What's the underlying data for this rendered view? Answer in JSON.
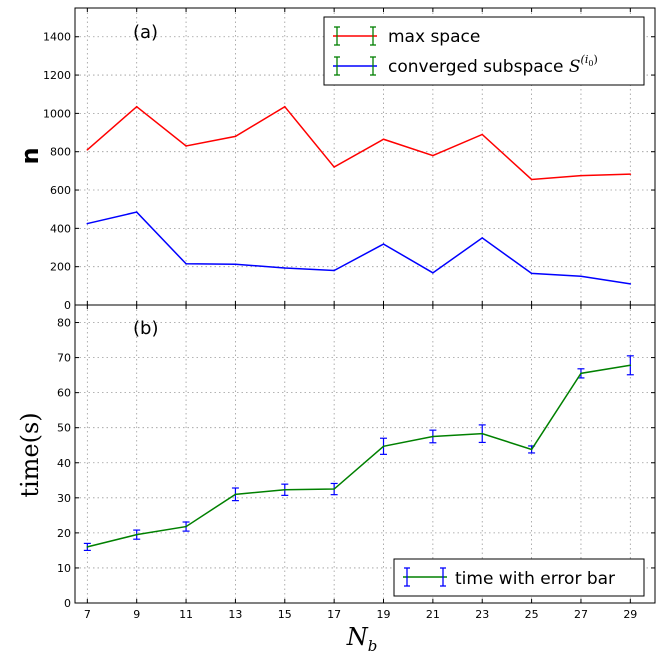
{
  "chart_data": [
    {
      "type": "line",
      "panel_label": "(a)",
      "ylabel": "n",
      "xlim": [
        6.5,
        30.0
      ],
      "ylim": [
        0,
        1550
      ],
      "x_ticks": [
        7,
        9,
        11,
        13,
        15,
        17,
        19,
        21,
        23,
        25,
        27,
        29
      ],
      "y_ticks": [
        0,
        200,
        400,
        600,
        800,
        1000,
        1200,
        1400
      ],
      "grid": true,
      "legend_position": "top-right",
      "series": [
        {
          "name": "max space",
          "color": "#ff0000",
          "x": [
            7,
            9,
            11,
            13,
            15,
            17,
            19,
            21,
            23,
            25,
            27,
            29
          ],
          "y": [
            810,
            1035,
            830,
            880,
            1035,
            720,
            865,
            780,
            890,
            655,
            675,
            683
          ]
        },
        {
          "name": "converged subspace S^(i0)",
          "name_text": "converged subspace ",
          "name_math": "S",
          "name_sup": "(i",
          "name_sub": "0",
          "name_close": ")",
          "color": "#0000ff",
          "x": [
            7,
            9,
            11,
            13,
            15,
            17,
            19,
            21,
            23,
            25,
            27,
            29
          ],
          "y": [
            425,
            485,
            215,
            213,
            193,
            180,
            318,
            168,
            350,
            165,
            150,
            110
          ]
        }
      ]
    },
    {
      "type": "line",
      "panel_label": "(b)",
      "ylabel": "time(s)",
      "xlabel": "N_b",
      "xlabel_main": "N",
      "xlabel_sub": "b",
      "xlim": [
        6.5,
        30.0
      ],
      "ylim": [
        0,
        85
      ],
      "x_ticks": [
        7,
        9,
        11,
        13,
        15,
        17,
        19,
        21,
        23,
        25,
        27,
        29
      ],
      "y_ticks": [
        0,
        10,
        20,
        30,
        40,
        50,
        60,
        70,
        80
      ],
      "grid": true,
      "legend_position": "bottom-right",
      "series": [
        {
          "name": "time with error bar",
          "color": "#008000",
          "errorbar_color": "#0000ff",
          "x": [
            7,
            9,
            11,
            13,
            15,
            17,
            19,
            21,
            23,
            25,
            27,
            29
          ],
          "y": [
            16.0,
            19.5,
            21.8,
            31.0,
            32.3,
            32.5,
            44.7,
            47.5,
            48.3,
            43.8,
            65.5,
            67.8
          ],
          "err": [
            1.0,
            1.3,
            1.3,
            1.8,
            1.6,
            1.6,
            2.3,
            1.8,
            2.5,
            1.0,
            1.3,
            2.7
          ]
        }
      ]
    }
  ]
}
